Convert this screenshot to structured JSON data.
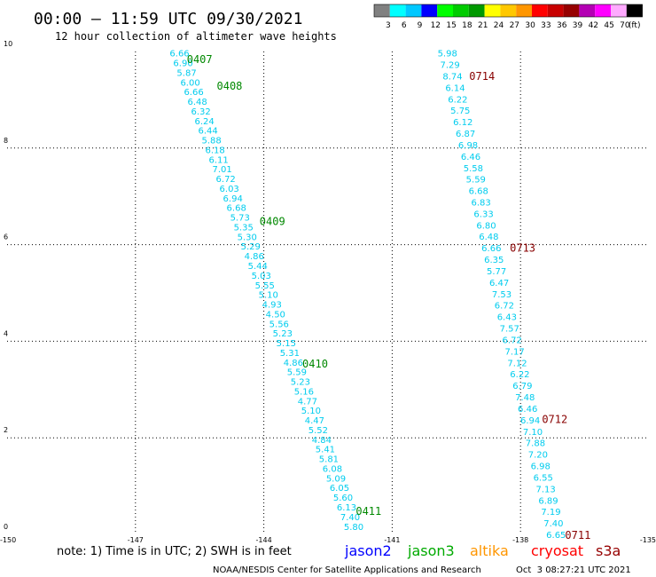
{
  "header": {
    "title": "00:00 – 11:59 UTC 09/30/2021",
    "subtitle": "12 hour collection of altimeter wave heights"
  },
  "colorbar": {
    "bins": [
      {
        "color": "#808080",
        "label": "3"
      },
      {
        "color": "#00ffff",
        "label": "6"
      },
      {
        "color": "#00c8ff",
        "label": "9"
      },
      {
        "color": "#0000ff",
        "label": "12"
      },
      {
        "color": "#00ff00",
        "label": "15"
      },
      {
        "color": "#00cc00",
        "label": "18"
      },
      {
        "color": "#009900",
        "label": "21"
      },
      {
        "color": "#ffff00",
        "label": "24"
      },
      {
        "color": "#ffc800",
        "label": "27"
      },
      {
        "color": "#ff9600",
        "label": "30"
      },
      {
        "color": "#ff0000",
        "label": "33"
      },
      {
        "color": "#c80000",
        "label": "36"
      },
      {
        "color": "#960000",
        "label": "39"
      },
      {
        "color": "#b400b4",
        "label": "42"
      },
      {
        "color": "#ff00ff",
        "label": "45"
      },
      {
        "color": "#ffaaff",
        "label": "70"
      },
      {
        "color": "#000000",
        "label": "(ft)"
      }
    ]
  },
  "footer": {
    "note": "note: 1) Time is in UTC; 2) SWH is in feet",
    "credit": "NOAA/NESDIS Center for Satellite Applications and Research",
    "timestamp": "Oct  3 08:27:21 UTC 2021",
    "satellites": [
      {
        "name": "jason2",
        "color": "#0000ff"
      },
      {
        "name": "jason3",
        "color": "#00aa00"
      },
      {
        "name": "altika",
        "color": "#ff9600"
      },
      {
        "name": "cryosat",
        "color": "#ff0000"
      },
      {
        "name": "s3a",
        "color": "#960000"
      }
    ]
  },
  "chart_data": {
    "type": "scatter",
    "xlim": [
      -150,
      -135
    ],
    "ylim": [
      0,
      10
    ],
    "x_ticks": [
      "-150",
      "-147",
      "-144",
      "-141",
      "-138",
      "-135"
    ],
    "y_ticks": [
      "0",
      "2",
      "4",
      "6",
      "8",
      "10"
    ],
    "grid": "dotted",
    "series": [
      {
        "color": "#00ccee",
        "start": [
          -146.2,
          9.97
        ],
        "end": [
          -142.13,
          0.17
        ],
        "values": [
          "6.66",
          "6.90",
          "5.87",
          "6.00",
          "6.66",
          "6.48",
          "6.32",
          "6.24",
          "6.44",
          "5.88",
          "6.18",
          "6.11",
          "7.01",
          "6.72",
          "6.03",
          "6.94",
          "6.68",
          "5.73",
          "5.35",
          "5.30",
          "5.29",
          "4.86",
          "5.44",
          "5.03",
          "5.55",
          "5.10",
          "4.93",
          "4.50",
          "5.56",
          "5.23",
          "5.15",
          "5.31",
          "4.86",
          "5.59",
          "5.23",
          "5.16",
          "4.77",
          "5.10",
          "4.47",
          "5.52",
          "4.84",
          "5.41",
          "5.81",
          "6.08",
          "5.09",
          "6.05",
          "5.60",
          "6.13",
          "7.40",
          "5.80"
        ]
      },
      {
        "color": "#00ccee",
        "start": [
          -139.94,
          9.97
        ],
        "end": [
          -137.4,
          0.0
        ],
        "values": [
          "5.98",
          "7.29",
          "8.74",
          "6.14",
          "6.22",
          "5.75",
          "6.12",
          "6.87",
          "6.98",
          "6.46",
          "5.58",
          "5.59",
          "6.68",
          "6.83",
          "6.33",
          "6.80",
          "6.48",
          "6.66",
          "6.35",
          "5.77",
          "6.47",
          "7.53",
          "6.72",
          "6.43",
          "7.57",
          "6.72",
          "7.17",
          "7.12",
          "6.22",
          "6.79",
          "7.48",
          "6.46",
          "6.94",
          "7.10",
          "7.88",
          "7.20",
          "6.98",
          "6.55",
          "7.13",
          "6.89",
          "7.19",
          "7.40",
          "6.65"
        ]
      }
    ],
    "time_labels": [
      {
        "text": "0407",
        "x": -145.8,
        "y": 9.85,
        "color": "#008800"
      },
      {
        "text": "0408",
        "x": -145.1,
        "y": 9.3,
        "color": "#008800"
      },
      {
        "text": "0409",
        "x": -144.1,
        "y": 6.5,
        "color": "#008800"
      },
      {
        "text": "0410",
        "x": -143.1,
        "y": 3.55,
        "color": "#008800"
      },
      {
        "text": "0411",
        "x": -141.85,
        "y": 0.5,
        "color": "#008800"
      },
      {
        "text": "0714",
        "x": -139.2,
        "y": 9.5,
        "color": "#880000"
      },
      {
        "text": "0713",
        "x": -138.25,
        "y": 5.95,
        "color": "#880000"
      },
      {
        "text": "0712",
        "x": -137.5,
        "y": 2.4,
        "color": "#880000"
      },
      {
        "text": "0711",
        "x": -136.96,
        "y": 0.0,
        "color": "#880000"
      }
    ]
  }
}
